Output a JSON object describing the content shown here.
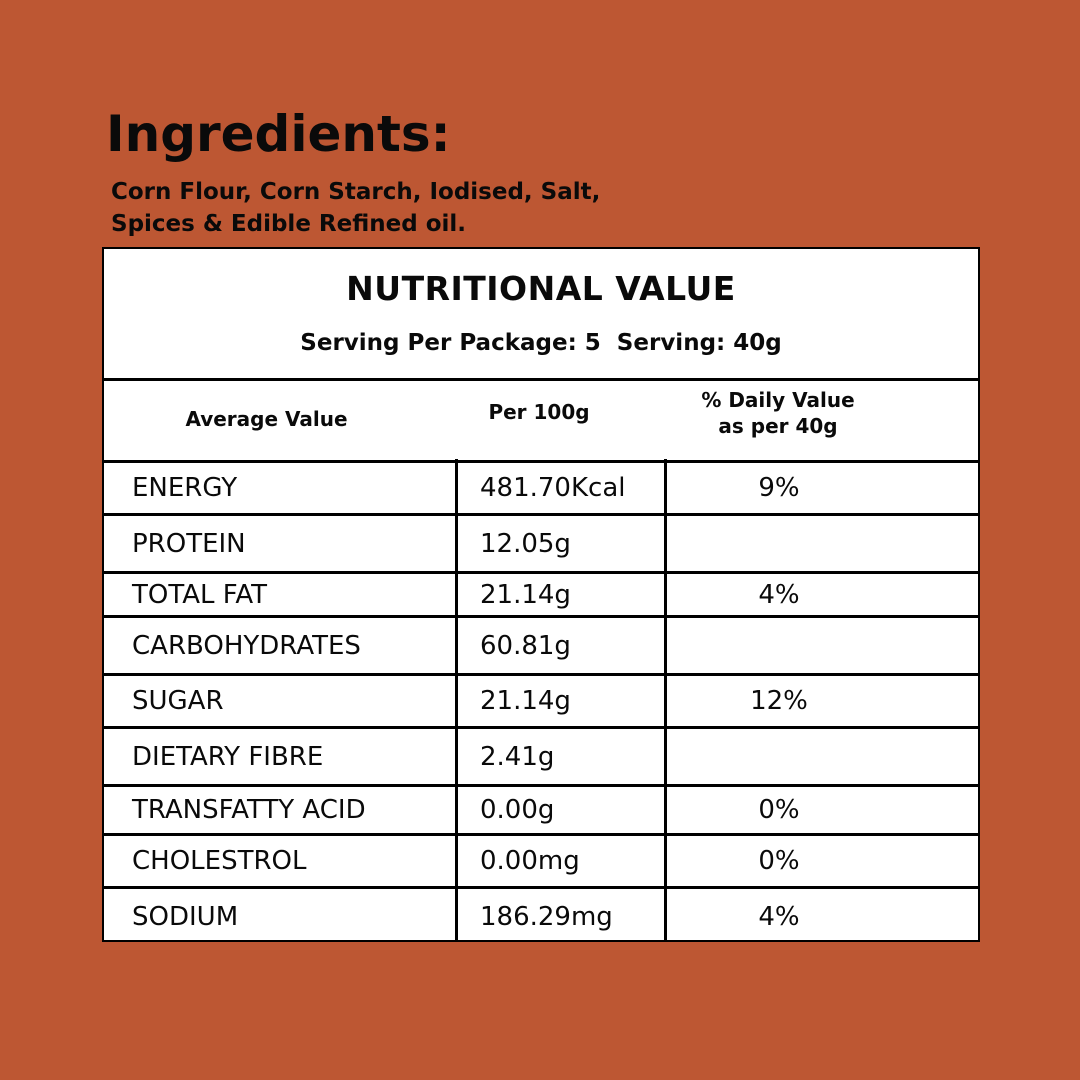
{
  "ingredients": {
    "heading": "Ingredients:",
    "line1": "Corn Flour, Corn Starch, Iodised, Salt,",
    "line2": "Spices & Edible Refined oil."
  },
  "nutrition": {
    "title": "NUTRITIONAL VALUE",
    "serving": "Serving Per Package: 5  Serving: 40g",
    "columns": {
      "average": "Average Value",
      "per100": "Per 100g",
      "daily_line1": "% Daily Value",
      "daily_line2": "as per 40g"
    },
    "rows": [
      {
        "name": "ENERGY",
        "per100": "481.70Kcal",
        "daily": "9%"
      },
      {
        "name": "PROTEIN",
        "per100": "12.05g",
        "daily": ""
      },
      {
        "name": "TOTAL FAT",
        "per100": "21.14g",
        "daily": "4%"
      },
      {
        "name": "CARBOHYDRATES",
        "per100": "60.81g",
        "daily": ""
      },
      {
        "name": "SUGAR",
        "per100": "21.14g",
        "daily": "12%"
      },
      {
        "name": "DIETARY FIBRE",
        "per100": "2.41g",
        "daily": ""
      },
      {
        "name": "TRANSFATTY ACID",
        "per100": "0.00g",
        "daily": "0%"
      },
      {
        "name": "CHOLESTROL",
        "per100": "0.00mg",
        "daily": "0%"
      },
      {
        "name": "SODIUM",
        "per100": "186.29mg",
        "daily": "4%"
      }
    ]
  },
  "colors": {
    "background": "#bd5733",
    "panel": "#ffffff",
    "text": "#0a0a0a"
  }
}
